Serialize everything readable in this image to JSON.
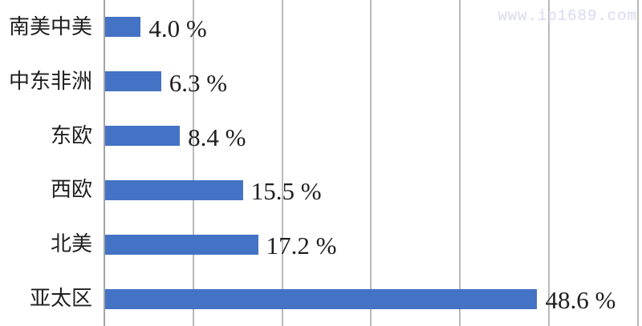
{
  "watermark": {
    "text": "www.ip1689.com",
    "color": "#d9d9f2"
  },
  "chart_data": {
    "type": "bar",
    "orientation": "horizontal",
    "title": "",
    "xlabel": "",
    "ylabel": "",
    "categories": [
      "南美中美",
      "中东非洲",
      "东欧",
      "西欧",
      "北美",
      "亚太区"
    ],
    "values": [
      4.0,
      6.3,
      8.4,
      15.5,
      17.2,
      48.6
    ],
    "value_labels": [
      "4.0 %",
      "6.3 %",
      "8.4 %",
      "15.5 %",
      "17.2 %",
      "48.6 %"
    ],
    "xlim": [
      0,
      60
    ],
    "grid": true,
    "gridline_interval": 10,
    "legend": "none",
    "colors": {
      "bar": "#4472c4",
      "gridline": "#b9b9b9",
      "axis": "#a3a3a3",
      "text": "#1f1f1f"
    }
  }
}
